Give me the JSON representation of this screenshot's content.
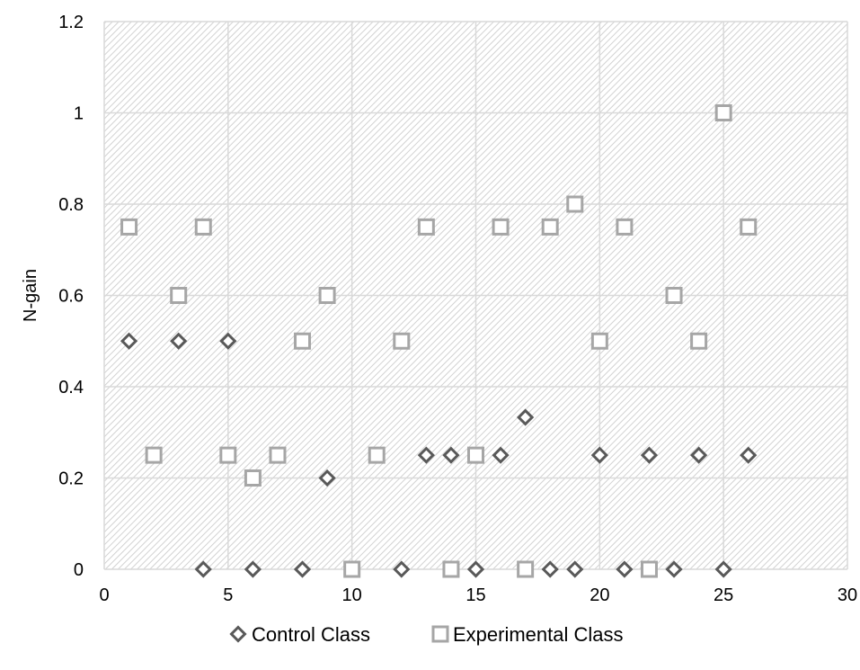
{
  "chart_data": {
    "type": "scatter",
    "title": "",
    "xlabel": "",
    "ylabel": "N-gain",
    "xlim": [
      0,
      30
    ],
    "ylim": [
      0,
      1.2
    ],
    "x_ticks": [
      0,
      5,
      10,
      15,
      20,
      25,
      30
    ],
    "y_ticks": [
      0,
      0.2,
      0.4,
      0.6,
      0.8,
      1,
      1.2
    ],
    "x_tick_labels": [
      "0",
      "5",
      "10",
      "15",
      "20",
      "25",
      "30"
    ],
    "y_tick_labels": [
      "0",
      "0.2",
      "0.4",
      "0.6",
      "0.8",
      "1",
      "1.2"
    ],
    "grid": true,
    "legend_position": "bottom",
    "plot_background": "hatched light gray",
    "series": [
      {
        "name": "Control Class",
        "marker": "diamond",
        "color": "#595959",
        "points": [
          [
            1,
            0.5
          ],
          [
            3,
            0.5
          ],
          [
            4,
            0
          ],
          [
            5,
            0.5
          ],
          [
            6,
            0
          ],
          [
            8,
            0
          ],
          [
            9,
            0.2
          ],
          [
            12,
            0
          ],
          [
            13,
            0.25
          ],
          [
            14,
            0.25
          ],
          [
            15,
            0
          ],
          [
            16,
            0.25
          ],
          [
            17,
            0.333
          ],
          [
            18,
            0
          ],
          [
            19,
            0
          ],
          [
            20,
            0.25
          ],
          [
            21,
            0
          ],
          [
            22,
            0.25
          ],
          [
            23,
            0
          ],
          [
            24,
            0.25
          ],
          [
            25,
            0
          ],
          [
            26,
            0.25
          ]
        ]
      },
      {
        "name": "Experimental Class",
        "marker": "square",
        "color": "#a6a6a6",
        "points": [
          [
            1,
            0.75
          ],
          [
            2,
            0.25
          ],
          [
            3,
            0.6
          ],
          [
            4,
            0.75
          ],
          [
            5,
            0.25
          ],
          [
            6,
            0.2
          ],
          [
            7,
            0.25
          ],
          [
            8,
            0.5
          ],
          [
            9,
            0.6
          ],
          [
            10,
            0
          ],
          [
            11,
            0.25
          ],
          [
            12,
            0.5
          ],
          [
            13,
            0.75
          ],
          [
            14,
            0
          ],
          [
            15,
            0.25
          ],
          [
            16,
            0.75
          ],
          [
            17,
            0
          ],
          [
            18,
            0.75
          ],
          [
            19,
            0.8
          ],
          [
            20,
            0.5
          ],
          [
            21,
            0.75
          ],
          [
            22,
            0
          ],
          [
            23,
            0.6
          ],
          [
            24,
            0.5
          ],
          [
            25,
            1
          ],
          [
            26,
            0.75
          ]
        ]
      }
    ]
  }
}
